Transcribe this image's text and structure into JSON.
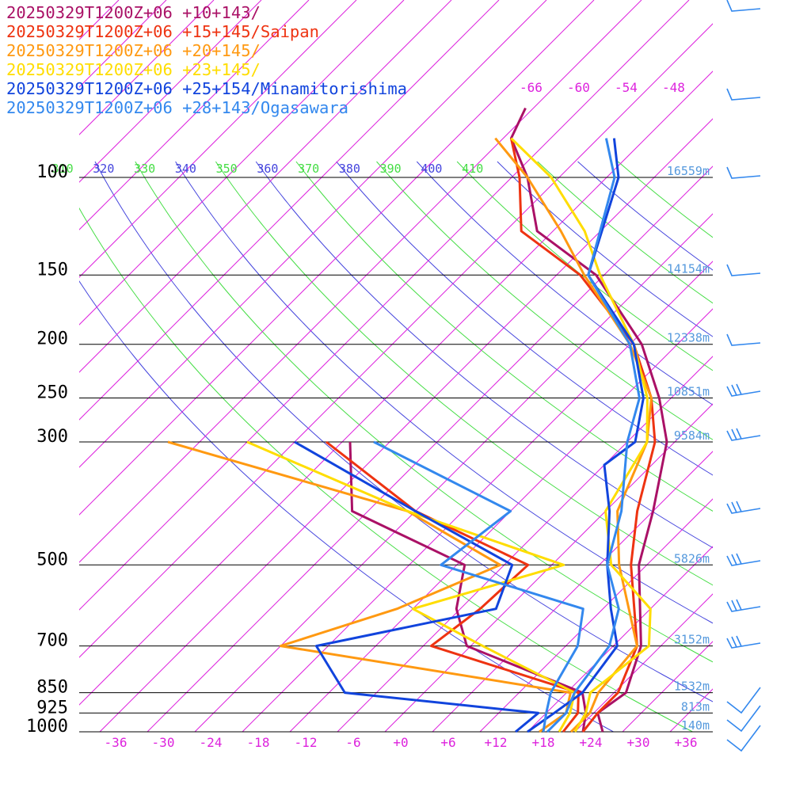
{
  "chart_data": {
    "type": "line",
    "title": "",
    "xlabel": "",
    "ylabel": "",
    "x_unit": "temperature (°C)",
    "y_unit": "pressure (hPa)",
    "y_scale": "log",
    "ylim": [
      1000,
      100
    ],
    "xlim": [
      -40,
      40
    ],
    "skew": "skew-T log-P",
    "grid": true,
    "legend_position": "top-left",
    "pressure_levels": [
      {
        "p": 100,
        "label": "100",
        "height": "16559m"
      },
      {
        "p": 150,
        "label": "150",
        "height": "14154m"
      },
      {
        "p": 200,
        "label": "200",
        "height": "12338m"
      },
      {
        "p": 250,
        "label": "250",
        "height": "10851m"
      },
      {
        "p": 300,
        "label": "300",
        "height": "9584m"
      },
      {
        "p": 500,
        "label": "500",
        "height": "5826m"
      },
      {
        "p": 700,
        "label": "700",
        "height": "3152m"
      },
      {
        "p": 850,
        "label": "850",
        "height": "1532m"
      },
      {
        "p": 925,
        "label": "925",
        "height": "813m"
      },
      {
        "p": 1000,
        "label": "1000",
        "height": "140m"
      }
    ],
    "x_ticks": [
      "-36",
      "-30",
      "-24",
      "-18",
      "-12",
      "-6",
      "+0",
      "+6",
      "+12",
      "+18",
      "+24",
      "+30",
      "+36"
    ],
    "x_tick_values": [
      -36,
      -30,
      -24,
      -18,
      -12,
      -6,
      0,
      6,
      12,
      18,
      24,
      30,
      36
    ],
    "isotherm_labels": [
      "-66",
      "-60",
      "-54",
      "-48"
    ],
    "isotherm_label_values": [
      -66,
      -60,
      -54,
      -48
    ],
    "theta_labels": [
      "310",
      "320",
      "330",
      "340",
      "350",
      "360",
      "370",
      "380",
      "390",
      "400",
      "410"
    ],
    "theta_values": [
      310,
      320,
      330,
      340,
      350,
      360,
      370,
      380,
      390,
      400,
      410
    ],
    "theta_colors": [
      "#44dd44",
      "#4444dd",
      "#44dd44",
      "#4444dd",
      "#44dd44",
      "#4444dd",
      "#44dd44",
      "#4444dd",
      "#44dd44",
      "#4444dd",
      "#44dd44"
    ],
    "extra_theta_values": [
      300,
      420,
      430,
      440,
      450
    ],
    "colors": {
      "isotherm": "#dd22dd",
      "isobar": "#000000",
      "height_label": "#5599dd",
      "wind_barb": "#3388ee",
      "theta_green": "#44dd44",
      "theta_blue": "#4444dd"
    },
    "series": [
      {
        "name": "20250329T1200Z+06 +10+143/",
        "color": "#aa1166",
        "temperature": [
          [
            1000,
            25.5
          ],
          [
            925,
            22.5
          ],
          [
            850,
            23.5
          ],
          [
            700,
            19.5
          ],
          [
            500,
            9
          ],
          [
            400,
            4
          ],
          [
            300,
            -3
          ],
          [
            250,
            -9.5
          ],
          [
            200,
            -18.5
          ],
          [
            150,
            -33
          ],
          [
            125,
            -46
          ],
          [
            100,
            -54
          ],
          [
            85,
            -61
          ],
          [
            75,
            -63
          ]
        ],
        "dewpoint": [
          [
            1000,
            23
          ],
          [
            925,
            21
          ],
          [
            850,
            18
          ],
          [
            700,
            -2.5
          ],
          [
            600,
            -8.5
          ],
          [
            500,
            -13
          ],
          [
            400,
            -34
          ],
          [
            300,
            -43
          ]
        ]
      },
      {
        "name": "20250329T1200Z+06 +15+145/Saipan",
        "color": "#ee3311",
        "temperature": [
          [
            1000,
            23
          ],
          [
            925,
            22.5
          ],
          [
            850,
            22.5
          ],
          [
            700,
            19
          ],
          [
            500,
            8
          ],
          [
            400,
            2
          ],
          [
            300,
            -4.5
          ],
          [
            250,
            -10.5
          ],
          [
            200,
            -19.5
          ],
          [
            150,
            -35
          ],
          [
            125,
            -48
          ],
          [
            100,
            -55
          ],
          [
            85,
            -61
          ]
        ],
        "dewpoint": [
          [
            1000,
            20.5
          ],
          [
            925,
            20
          ],
          [
            850,
            17.5
          ],
          [
            700,
            -7
          ],
          [
            600,
            -5.5
          ],
          [
            500,
            -5
          ],
          [
            400,
            -26
          ],
          [
            300,
            -46
          ]
        ]
      },
      {
        "name": "20250329T1200Z+06 +20+145/",
        "color": "#ff9911",
        "temperature": [
          [
            1000,
            21.5
          ],
          [
            925,
            21.5
          ],
          [
            850,
            20
          ],
          [
            700,
            19
          ],
          [
            500,
            6.5
          ],
          [
            400,
            -0.5
          ],
          [
            300,
            -5.5
          ],
          [
            250,
            -10.5
          ],
          [
            200,
            -20
          ],
          [
            150,
            -34.5
          ],
          [
            125,
            -43
          ],
          [
            100,
            -54
          ],
          [
            85,
            -63
          ]
        ],
        "dewpoint": [
          [
            1000,
            17.5
          ],
          [
            925,
            18.5
          ],
          [
            850,
            16.5
          ],
          [
            700,
            -26
          ],
          [
            600,
            -16
          ],
          [
            500,
            -8.5
          ],
          [
            400,
            -27
          ],
          [
            300,
            -66
          ]
        ]
      },
      {
        "name": "20250329T1200Z+06 +23+145/",
        "color": "#ffdd00",
        "temperature": [
          [
            1000,
            22
          ],
          [
            925,
            21
          ],
          [
            850,
            19
          ],
          [
            700,
            20.5
          ],
          [
            600,
            16
          ],
          [
            500,
            5.5
          ],
          [
            400,
            -2
          ],
          [
            300,
            -5.5
          ],
          [
            250,
            -11
          ],
          [
            200,
            -19.5
          ],
          [
            150,
            -32.5
          ],
          [
            125,
            -40
          ],
          [
            100,
            -51
          ],
          [
            85,
            -61
          ]
        ],
        "dewpoint": [
          [
            1000,
            20
          ],
          [
            925,
            19
          ],
          [
            850,
            17
          ],
          [
            700,
            -0.5
          ],
          [
            600,
            -14
          ],
          [
            500,
            -0.5
          ],
          [
            400,
            -27
          ],
          [
            300,
            -56
          ]
        ]
      },
      {
        "name": "20250329T1200Z+06 +25+154/Minamitorishima",
        "color": "#1144dd",
        "temperature": [
          [
            1000,
            16
          ],
          [
            925,
            17
          ],
          [
            850,
            18
          ],
          [
            700,
            16.5
          ],
          [
            600,
            11
          ],
          [
            500,
            5
          ],
          [
            400,
            -1.5
          ],
          [
            330,
            -8
          ],
          [
            300,
            -7
          ],
          [
            250,
            -11.5
          ],
          [
            200,
            -19.5
          ],
          [
            150,
            -34
          ],
          [
            100,
            -42.5
          ],
          [
            85,
            -48
          ]
        ],
        "dewpoint": [
          [
            1000,
            14.5
          ],
          [
            925,
            15
          ],
          [
            850,
            -12
          ],
          [
            700,
            -21.5
          ],
          [
            600,
            -3.5
          ],
          [
            500,
            -7
          ],
          [
            400,
            -26
          ],
          [
            300,
            -50
          ]
        ]
      },
      {
        "name": "20250329T1200Z+06 +28+143/Ogasawara",
        "color": "#3388ee",
        "temperature": [
          [
            1000,
            18.5
          ],
          [
            925,
            18.5
          ],
          [
            850,
            17
          ],
          [
            700,
            15.5
          ],
          [
            600,
            12
          ],
          [
            500,
            5
          ],
          [
            400,
            0
          ],
          [
            300,
            -8
          ],
          [
            250,
            -12
          ],
          [
            200,
            -20
          ],
          [
            150,
            -34
          ],
          [
            100,
            -43
          ],
          [
            85,
            -49
          ]
        ],
        "dewpoint": [
          [
            1000,
            18
          ],
          [
            925,
            16
          ],
          [
            850,
            14
          ],
          [
            700,
            11.5
          ],
          [
            600,
            7.5
          ],
          [
            500,
            -16
          ],
          [
            400,
            -14
          ],
          [
            300,
            -40
          ]
        ]
      }
    ]
  }
}
